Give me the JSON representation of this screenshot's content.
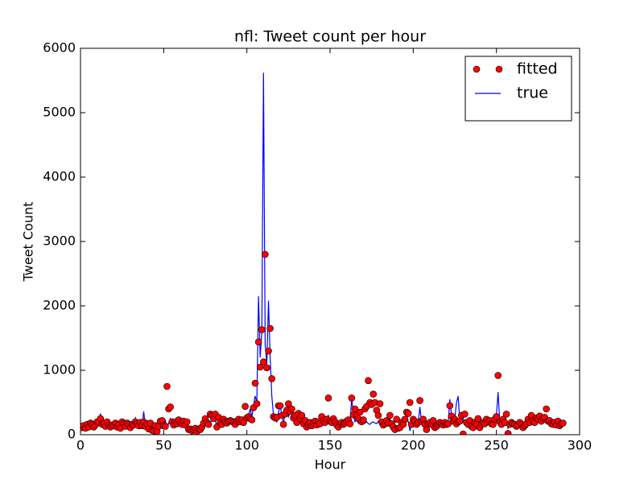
{
  "chart_data": {
    "type": "line_scatter",
    "title": "nfl: Tweet count per hour",
    "xlabel": "Hour",
    "ylabel": "Tweet Count",
    "xlim": [
      0,
      300
    ],
    "xticks": [
      0,
      50,
      100,
      150,
      200,
      250,
      300
    ],
    "ylim": [
      0,
      6000
    ],
    "yticks": [
      0,
      1000,
      2000,
      3000,
      4000,
      5000,
      6000
    ],
    "legend": "upper right",
    "x": [
      0,
      1,
      2,
      3,
      4,
      5,
      6,
      7,
      8,
      9,
      10,
      11,
      12,
      13,
      14,
      15,
      16,
      17,
      18,
      19,
      20,
      21,
      22,
      23,
      24,
      25,
      26,
      27,
      28,
      29,
      30,
      31,
      32,
      33,
      34,
      35,
      36,
      37,
      38,
      39,
      40,
      41,
      42,
      43,
      44,
      45,
      46,
      47,
      48,
      49,
      50,
      51,
      52,
      53,
      54,
      55,
      56,
      57,
      58,
      59,
      60,
      61,
      62,
      63,
      64,
      65,
      66,
      67,
      68,
      69,
      70,
      71,
      72,
      73,
      74,
      75,
      76,
      77,
      78,
      79,
      80,
      81,
      82,
      83,
      84,
      85,
      86,
      87,
      88,
      89,
      90,
      91,
      92,
      93,
      94,
      95,
      96,
      97,
      98,
      99,
      100,
      101,
      102,
      103,
      104,
      105,
      106,
      107,
      108,
      109,
      110,
      111,
      112,
      113,
      114,
      115,
      116,
      117,
      118,
      119,
      120,
      121,
      122,
      123,
      124,
      125,
      126,
      127,
      128,
      129,
      130,
      131,
      132,
      133,
      134,
      135,
      136,
      137,
      138,
      139,
      140,
      141,
      142,
      143,
      144,
      145,
      146,
      147,
      148,
      149,
      150,
      151,
      152,
      153,
      154,
      155,
      156,
      157,
      158,
      159,
      160,
      161,
      162,
      163,
      164,
      165,
      166,
      167,
      168,
      169,
      170,
      171,
      172,
      173,
      174,
      175,
      176,
      177,
      178,
      179,
      180,
      181,
      182,
      183,
      184,
      185,
      186,
      187,
      188,
      189,
      190,
      191,
      192,
      193,
      194,
      195,
      196,
      197,
      198,
      199,
      200,
      201,
      202,
      203,
      204,
      205,
      206,
      207,
      208,
      209,
      210,
      211,
      212,
      213,
      214,
      215,
      216,
      217,
      218,
      219,
      220,
      221,
      222,
      223,
      224,
      225,
      226,
      227,
      228,
      229,
      230,
      231,
      232,
      233,
      234,
      235,
      236,
      237,
      238,
      239,
      240,
      241,
      242,
      243,
      244,
      245,
      246,
      247,
      248,
      249,
      250,
      251,
      252,
      253,
      254,
      255,
      256,
      257,
      258,
      259,
      260,
      261,
      262,
      263,
      264,
      265,
      266,
      267,
      268,
      269,
      270,
      271,
      272,
      273,
      274,
      275,
      276,
      277,
      278,
      279,
      280,
      281,
      282,
      283,
      284,
      285,
      286,
      287,
      288,
      289,
      290
    ],
    "series": [
      {
        "name": "fitted",
        "kind": "markers",
        "color": "#ff0000",
        "values": [
          130,
          110,
          140,
          100,
          160,
          120,
          180,
          160,
          120,
          150,
          200,
          190,
          250,
          160,
          180,
          130,
          200,
          150,
          120,
          150,
          140,
          180,
          120,
          160,
          100,
          200,
          170,
          130,
          180,
          160,
          110,
          160,
          150,
          200,
          170,
          140,
          190,
          140,
          200,
          130,
          170,
          90,
          180,
          70,
          60,
          140,
          50,
          130,
          210,
          220,
          140,
          130,
          750,
          400,
          430,
          200,
          150,
          200,
          170,
          230,
          190,
          160,
          210,
          150,
          200,
          80,
          90,
          60,
          80,
          100,
          50,
          90,
          80,
          120,
          180,
          250,
          190,
          160,
          320,
          300,
          250,
          320,
          120,
          270,
          190,
          160,
          240,
          200,
          180,
          210,
          220,
          210,
          190,
          160,
          210,
          240,
          200,
          230,
          190,
          440,
          260,
          280,
          250,
          230,
          420,
          800,
          480,
          1440,
          1050,
          1630,
          1130,
          2800,
          1040,
          1300,
          1650,
          870,
          280,
          260,
          270,
          450,
          450,
          300,
          160,
          320,
          380,
          480,
          360,
          400,
          260,
          300,
          190,
          330,
          250,
          300,
          170,
          220,
          120,
          160,
          190,
          140,
          180,
          210,
          150,
          200,
          170,
          280,
          220,
          190,
          240,
          570,
          210,
          190,
          250,
          200,
          150,
          120,
          170,
          190,
          160,
          180,
          210,
          230,
          170,
          570,
          310,
          400,
          300,
          250,
          350,
          200,
          230,
          400,
          440,
          840,
          500,
          470,
          630,
          500,
          380,
          300,
          480,
          200,
          150,
          170,
          220,
          180,
          300,
          170,
          120,
          80,
          240,
          100,
          110,
          190,
          160,
          240,
          350,
          330,
          500,
          160,
          240,
          210,
          160,
          190,
          530,
          210,
          240,
          160,
          80,
          170,
          190,
          160,
          220,
          110,
          130,
          160,
          190,
          170,
          150,
          190,
          160,
          170,
          450,
          290,
          210,
          240,
          170,
          200,
          210,
          300,
          10,
          320,
          190,
          160,
          220,
          130,
          110,
          190,
          160,
          250,
          110,
          160,
          190,
          170,
          240,
          200,
          220,
          170,
          160,
          240,
          280,
          920,
          200,
          160,
          240,
          190,
          320,
          20,
          160,
          190,
          170,
          160,
          130,
          150,
          190,
          160,
          110,
          140,
          170,
          240,
          190,
          300,
          220,
          190,
          260,
          240,
          290,
          210,
          250,
          270,
          400,
          210,
          220,
          170,
          160,
          190,
          150,
          210,
          140,
          170,
          180
        ]
      },
      {
        "name": "true",
        "kind": "line",
        "color": "#0000ff",
        "values": [
          120,
          100,
          150,
          90,
          180,
          130,
          200,
          150,
          110,
          170,
          220,
          180,
          330,
          150,
          200,
          120,
          180,
          140,
          100,
          160,
          130,
          200,
          110,
          150,
          90,
          230,
          180,
          120,
          200,
          150,
          100,
          170,
          140,
          260,
          180,
          150,
          200,
          130,
          360,
          120,
          180,
          80,
          200,
          60,
          40,
          150,
          30,
          120,
          100,
          200,
          150,
          220,
          100,
          180,
          250,
          200,
          140,
          220,
          180,
          250,
          200,
          150,
          230,
          140,
          220,
          60,
          80,
          40,
          70,
          100,
          30,
          90,
          60,
          120,
          200,
          250,
          180,
          150,
          200,
          220,
          270,
          230,
          110,
          300,
          180,
          150,
          250,
          200,
          170,
          220,
          230,
          200,
          180,
          150,
          220,
          250,
          200,
          240,
          180,
          230,
          250,
          300,
          400,
          280,
          450,
          600,
          500,
          2150,
          1200,
          1600,
          5620,
          1400,
          1100,
          2080,
          1200,
          600,
          300,
          250,
          200,
          350,
          450,
          300,
          180,
          330,
          400,
          280,
          350,
          420,
          250,
          300,
          200,
          340,
          260,
          300,
          180,
          230,
          100,
          150,
          200,
          120,
          170,
          220,
          140,
          200,
          160,
          300,
          230,
          180,
          250,
          300,
          220,
          180,
          260,
          200,
          140,
          100,
          170,
          200,
          150,
          180,
          200,
          240,
          160,
          580,
          300,
          200,
          230,
          180,
          250,
          200,
          220,
          180,
          200,
          170,
          160,
          190,
          200,
          180,
          170,
          210,
          150,
          200,
          140,
          180,
          230,
          200,
          250,
          160,
          100,
          60,
          80,
          100,
          120,
          200,
          150,
          250,
          300,
          200,
          60,
          150,
          250,
          200,
          150,
          180,
          430,
          200,
          250,
          150,
          60,
          180,
          200,
          150,
          230,
          100,
          120,
          150,
          200,
          180,
          140,
          200,
          150,
          180,
          550,
          300,
          200,
          250,
          500,
          600,
          200,
          350,
          250,
          180,
          200,
          150,
          230,
          120,
          100,
          200,
          150,
          120,
          100,
          150,
          200,
          180,
          250,
          200,
          230,
          180,
          150,
          250,
          300,
          660,
          200,
          150,
          250,
          180,
          220,
          100,
          150,
          200,
          180,
          150,
          120,
          140,
          200,
          170,
          100,
          130,
          180,
          250,
          200,
          330,
          230,
          180,
          270,
          250,
          300,
          220,
          260,
          280,
          250,
          200,
          230,
          180,
          160,
          200,
          150,
          220,
          140,
          180,
          170
        ]
      }
    ]
  }
}
